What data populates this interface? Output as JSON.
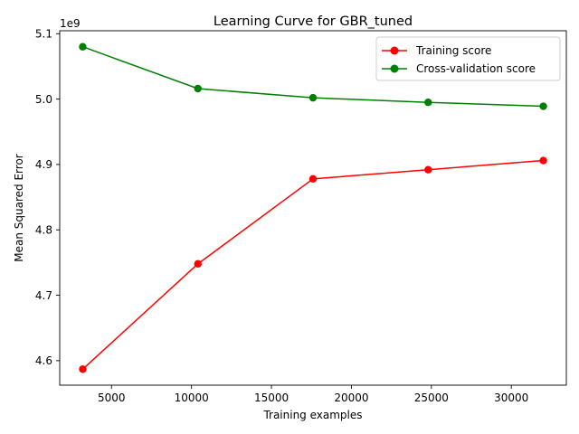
{
  "chart_data": {
    "type": "line",
    "title": "Learning Curve for GBR_tuned",
    "xlabel": "Training examples",
    "ylabel": "Mean Squared Error",
    "y_offset_label": "1e9",
    "x": [
      3200,
      10400,
      17600,
      24800,
      32000
    ],
    "series": [
      {
        "name": "Training score",
        "color": "#ff0000",
        "marker": "circle",
        "values": [
          4.587,
          4.748,
          4.878,
          4.892,
          4.906
        ]
      },
      {
        "name": "Cross-validation score",
        "color": "#008000",
        "marker": "circle",
        "values": [
          5.08,
          5.016,
          5.002,
          4.995,
          4.989
        ]
      }
    ],
    "xlim": [
      1760,
      33440
    ],
    "ylim": [
      4.5625,
      5.1045
    ],
    "x_ticks": [
      5000,
      10000,
      15000,
      20000,
      25000,
      30000
    ],
    "x_tick_labels": [
      "5000",
      "10000",
      "15000",
      "20000",
      "25000",
      "30000"
    ],
    "y_ticks": [
      4.6,
      4.7,
      4.8,
      4.9,
      5.0,
      5.1
    ],
    "y_tick_labels": [
      "4.6",
      "4.7",
      "4.8",
      "4.9",
      "5.0",
      "5.1"
    ],
    "grid": false,
    "legend_position": "upper right"
  }
}
